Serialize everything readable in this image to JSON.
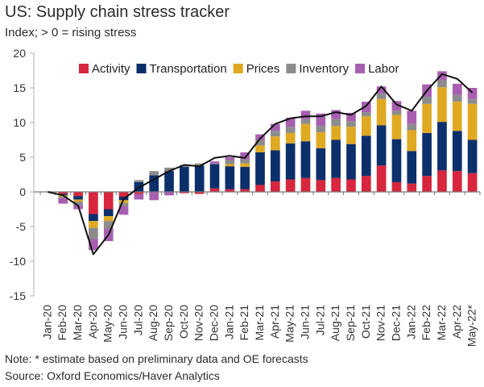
{
  "chart_data": {
    "type": "stacked-bar-with-line",
    "title": "US: Supply chain stress tracker",
    "subtitle": "Index; > 0 = rising stress",
    "note": "Note: * estimate based on preliminary data and OE forecasts",
    "source": "Source: Oxford Economics/Haver Analytics",
    "ylim": [
      -15,
      20
    ],
    "yticks": [
      -15,
      -10,
      -5,
      0,
      5,
      10,
      15,
      20
    ],
    "categories": [
      "Jan-20",
      "Feb-20",
      "Mar-20",
      "Apr-20",
      "May-20",
      "Jun-20",
      "Jul-20",
      "Aug-20",
      "Sep-20",
      "Oct-20",
      "Nov-20",
      "Dec-20",
      "Jan-21",
      "Feb-21",
      "Mar-21",
      "Apr-21",
      "May-21",
      "Jun-21",
      "Jul-21",
      "Aug-21",
      "Sep-21",
      "Oct-21",
      "Nov-21",
      "Dec-21",
      "Jan-22",
      "Feb-22",
      "Mar-22",
      "Apr-22",
      "May-22*"
    ],
    "x_tick_labels": [
      "Jan-20",
      "",
      "Mar-20",
      "",
      "May-20",
      "",
      "Jul-20",
      "",
      "Sep-20",
      "",
      "Nov-20",
      "",
      "Jan-21",
      "",
      "Mar-21",
      "",
      "May-21",
      "",
      "Jul-21",
      "",
      "Sep-21",
      "",
      "Nov-21",
      "",
      "Jan-22",
      "",
      "Mar-22",
      "",
      "May-22*"
    ],
    "x_tick_labels_alt": [
      "",
      "Feb-20",
      "",
      "Apr-20",
      "",
      "Jun-20",
      "",
      "Aug-20",
      "",
      "Oct-20",
      "",
      "Dec-20",
      "",
      "Feb-21",
      "",
      "Apr-21",
      "",
      "Jun-21",
      "",
      "Aug-21",
      "",
      "Oct-21",
      "",
      "Dec-21",
      "",
      "Feb-22",
      "",
      "Apr-22",
      ""
    ],
    "series": [
      {
        "name": "Activity",
        "color": "#d7263d",
        "values": [
          0,
          -0.3,
          -0.6,
          -3.2,
          -2.5,
          -0.7,
          -0.3,
          0,
          0,
          -0.2,
          -0.3,
          0.5,
          0.4,
          0.4,
          1.0,
          1.5,
          1.8,
          2.0,
          1.7,
          2.0,
          1.8,
          2.3,
          3.8,
          1.4,
          1.2,
          2.3,
          3.1,
          3.0,
          2.7
        ]
      },
      {
        "name": "Transportation",
        "color": "#0b2f6b",
        "values": [
          0,
          -0.2,
          -0.5,
          -1.0,
          -1.0,
          -0.5,
          1.4,
          2.4,
          3.0,
          3.6,
          3.8,
          3.5,
          3.3,
          3.2,
          4.7,
          4.5,
          5.2,
          5.3,
          4.6,
          5.5,
          5.1,
          5.8,
          5.8,
          6.2,
          4.7,
          6.2,
          7.0,
          5.8,
          4.8
        ]
      },
      {
        "name": "Prices",
        "color": "#e0a922",
        "values": [
          0,
          -0.2,
          -0.3,
          -1.0,
          -0.7,
          -0.4,
          0,
          0,
          0,
          0,
          0,
          0,
          0.3,
          0.5,
          1.0,
          2.0,
          1.5,
          2.5,
          2.3,
          2.0,
          2.5,
          2.8,
          3.8,
          3.5,
          3.0,
          4.2,
          5.0,
          4.2,
          5.2
        ]
      },
      {
        "name": "Inventory",
        "color": "#8c8c8c",
        "values": [
          0,
          -0.2,
          -0.5,
          -1.6,
          -1.1,
          -0.5,
          0.3,
          0.6,
          0.5,
          0.3,
          0.3,
          0.1,
          0.6,
          0.6,
          0.8,
          0.8,
          0.9,
          0.7,
          0.9,
          1.0,
          0.8,
          0.6,
          0.8,
          0.6,
          0.9,
          1.0,
          1.0,
          1.0,
          0.7
        ]
      },
      {
        "name": "Labor",
        "color": "#a85fb0",
        "values": [
          0,
          -0.8,
          -0.6,
          -1.6,
          -1.8,
          -1.2,
          -0.8,
          -1.2,
          -0.5,
          0,
          0,
          0.3,
          0.4,
          1.0,
          0.8,
          1.0,
          1.3,
          1.2,
          1.8,
          1.3,
          1.2,
          1.5,
          1.0,
          1.4,
          1.9,
          1.8,
          1.3,
          1.6,
          1.6
        ]
      }
    ],
    "line": {
      "name": "Total",
      "color": "#111111",
      "values": [
        0,
        -0.5,
        -2.0,
        -9.0,
        -6.2,
        -1.0,
        0.6,
        1.8,
        3.0,
        3.9,
        3.7,
        4.9,
        5.2,
        4.9,
        7.7,
        9.8,
        10.6,
        10.9,
        10.9,
        11.5,
        11.1,
        12.4,
        15.2,
        12.6,
        11.7,
        14.6,
        17.0,
        16.3,
        14.3
      ]
    },
    "legend": [
      "Activity",
      "Transportation",
      "Prices",
      "Inventory",
      "Labor"
    ],
    "legend_position": "top-right"
  }
}
